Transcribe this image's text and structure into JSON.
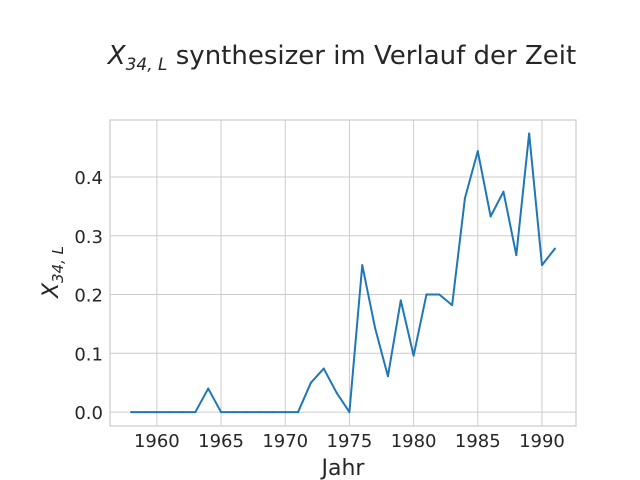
{
  "chart_data": {
    "type": "line",
    "title_var": "X",
    "title_sub": "34, L",
    "title_rest": " synthesizer im Verlauf der Zeit",
    "xlabel": "Jahr",
    "ylabel_var": "X",
    "ylabel_sub": "34, L",
    "xlim": [
      1956.35,
      1992.65
    ],
    "ylim": [
      -0.0237,
      0.497
    ],
    "xticks": [
      1960,
      1965,
      1970,
      1975,
      1980,
      1985,
      1990
    ],
    "yticks": [
      "0.0",
      "0.1",
      "0.2",
      "0.3",
      "0.4"
    ],
    "grid": true,
    "series": [
      {
        "color": "#1f77b4",
        "x": [
          1958,
          1959,
          1960,
          1961,
          1962,
          1963,
          1964,
          1965,
          1966,
          1967,
          1968,
          1969,
          1970,
          1971,
          1972,
          1973,
          1974,
          1975,
          1976,
          1977,
          1978,
          1979,
          1980,
          1981,
          1982,
          1983,
          1984,
          1985,
          1986,
          1987,
          1988,
          1989,
          1990,
          1991
        ],
        "y": [
          0,
          0,
          0,
          0,
          0,
          0,
          0.04,
          0,
          0,
          0,
          0,
          0,
          0,
          0,
          0.05,
          0.074,
          0.033,
          0,
          0.25,
          0.143,
          0.061,
          0.19,
          0.096,
          0.2,
          0.2,
          0.182,
          0.364,
          0.444,
          0.333,
          0.375,
          0.267,
          0.474,
          0.25,
          0.278
        ]
      }
    ]
  }
}
